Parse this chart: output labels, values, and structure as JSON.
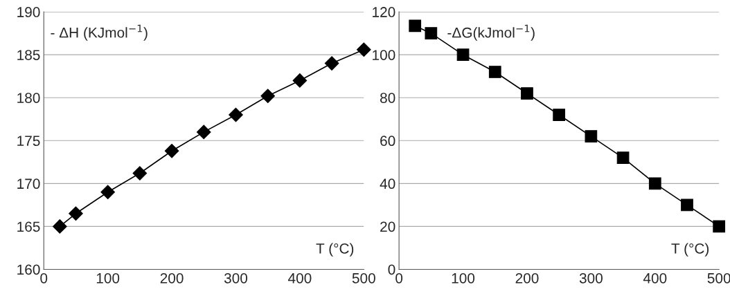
{
  "chart_data": [
    {
      "type": "line",
      "ylabel": "- ΔH (KJmol$^{−1}$)",
      "xlabel": "T (°C)",
      "x": [
        25,
        50,
        100,
        150,
        200,
        250,
        300,
        350,
        400,
        450,
        500
      ],
      "series": [
        {
          "color": "#000000",
          "values": [
            165,
            166.5,
            169,
            171.2,
            173.8,
            176,
            178,
            180.2,
            182,
            184,
            185.6
          ]
        }
      ],
      "marker": "diamond",
      "xlim": [
        0,
        500
      ],
      "xticks": [
        0,
        100,
        200,
        300,
        400,
        500
      ],
      "ylim": [
        160,
        190
      ],
      "yticks": [
        160,
        165,
        170,
        175,
        180,
        185,
        190
      ],
      "grid": "y",
      "legend": false
    },
    {
      "type": "line",
      "ylabel": "-ΔG(kJmol$^{−1}$)",
      "xlabel": "T (°C)",
      "x": [
        25,
        50,
        100,
        150,
        200,
        250,
        300,
        350,
        400,
        450,
        500
      ],
      "series": [
        {
          "color": "#000000",
          "values": [
            113.5,
            110,
            100,
            92,
            82,
            72,
            62,
            52,
            40,
            30,
            20
          ]
        }
      ],
      "marker": "square",
      "xlim": [
        0,
        500
      ],
      "xticks": [
        0,
        100,
        200,
        300,
        400,
        500
      ],
      "ylim": [
        0,
        120
      ],
      "yticks": [
        0,
        20,
        40,
        60,
        80,
        100,
        120
      ],
      "grid": "y",
      "legend": false
    }
  ]
}
